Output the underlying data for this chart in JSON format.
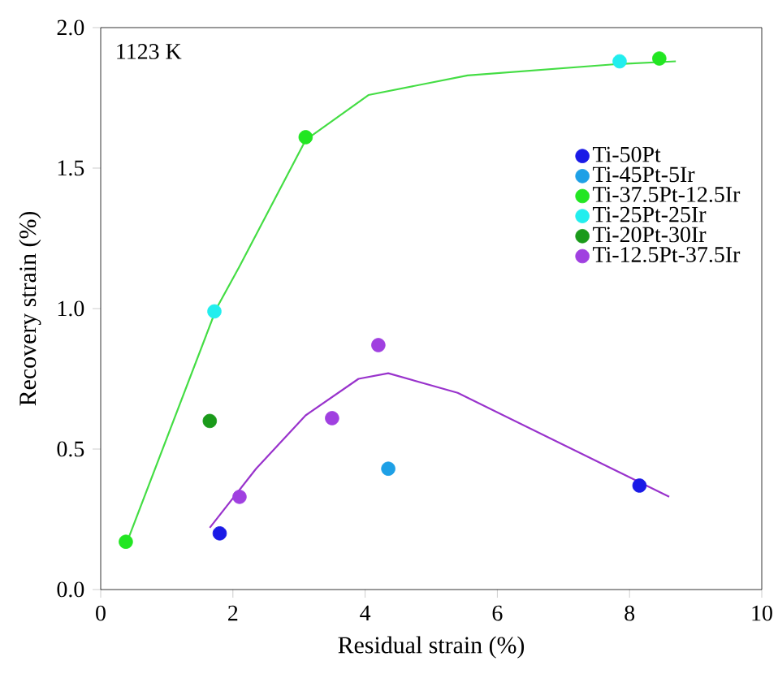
{
  "chart_data": {
    "type": "scatter",
    "xlabel": "Residual strain (%)",
    "ylabel": "Recovery strain (%)",
    "annotations": [
      "1123 K"
    ],
    "xlim": [
      0,
      10
    ],
    "ylim": [
      0,
      2.0
    ],
    "xticks": [
      0,
      2,
      4,
      6,
      8,
      10
    ],
    "yticks": [
      {
        "value": 0,
        "label": "0.0"
      },
      {
        "value": 0.5,
        "label": "0.5"
      },
      {
        "value": 1.0,
        "label": "1.0"
      },
      {
        "value": 1.5,
        "label": "1.5"
      },
      {
        "value": 2.0,
        "label": "2.0"
      }
    ],
    "grid": false,
    "legend": "right",
    "marker": "circle",
    "series": [
      {
        "type": "line",
        "marker": "none",
        "color": "#44dd44",
        "x": [
          0.4,
          1.75,
          2.1,
          3.1,
          4.05,
          5.55,
          7.8,
          8.7
        ],
        "values": [
          0.17,
          1.0,
          1.15,
          1.6,
          1.76,
          1.83,
          1.87,
          1.88
        ]
      },
      {
        "type": "line",
        "marker": "none",
        "color": "#9933cc",
        "x": [
          1.65,
          2.35,
          3.1,
          3.9,
          4.35,
          5.4,
          8.6
        ],
        "values": [
          0.22,
          0.43,
          0.62,
          0.75,
          0.77,
          0.7,
          0.33
        ]
      },
      {
        "name": "Ti-50Pt",
        "color": "#1a1ae6",
        "x": [
          1.8,
          8.15
        ],
        "values": [
          0.2,
          0.37
        ]
      },
      {
        "name": "Ti-45Pt-5Ir",
        "color": "#1ea0e6",
        "x": [
          4.35
        ],
        "values": [
          0.43
        ]
      },
      {
        "name": "Ti-37.5Pt-12.5Ir",
        "color": "#22e622",
        "x": [
          0.38,
          3.1,
          8.45
        ],
        "values": [
          0.17,
          1.61,
          1.89
        ]
      },
      {
        "name": "Ti-25Pt-25Ir",
        "color": "#22eeee",
        "x": [
          1.72,
          7.85
        ],
        "values": [
          0.99,
          1.88
        ]
      },
      {
        "name": "Ti-20Pt-30Ir",
        "color": "#1a9a1a",
        "x": [
          1.65
        ],
        "values": [
          0.6
        ]
      },
      {
        "name": "Ti-12.5Pt-37.5Ir",
        "color": "#a040e0",
        "x": [
          2.1,
          3.5,
          4.2
        ],
        "values": [
          0.33,
          0.61,
          0.87
        ]
      }
    ]
  }
}
